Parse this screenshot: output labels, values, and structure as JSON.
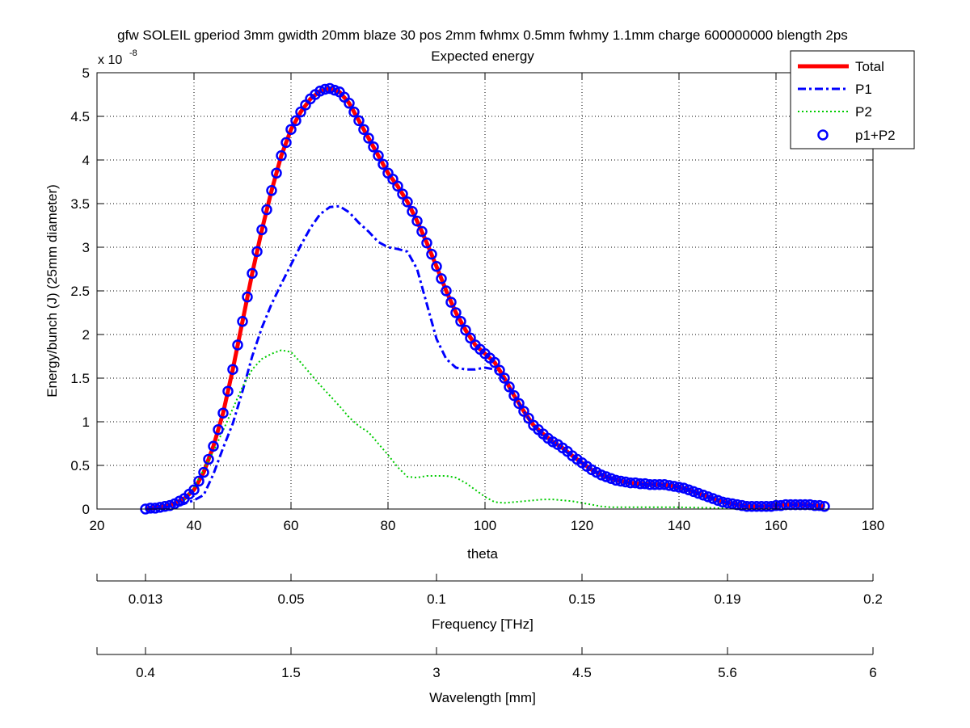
{
  "chart_data": {
    "type": "line",
    "title": "gfw SOLEIL gperiod 3mm gwidth 20mm blaze 30 pos 2mm fwhmx 0.5mm fwhmy 1.1mm charge 600000000 blength 2ps",
    "subtitle": "Expected energy",
    "xlabel": "theta",
    "ylabel": "Energy/bunch (J) (25mm diameter)",
    "y_exponent_label": "x 10",
    "y_exponent": "-8",
    "xlim": [
      20,
      180
    ],
    "ylim": [
      0,
      5
    ],
    "xticks": [
      20,
      40,
      60,
      80,
      100,
      120,
      140,
      160,
      180
    ],
    "yticks": [
      0,
      0.5,
      1,
      1.5,
      2,
      2.5,
      3,
      3.5,
      4,
      4.5,
      5
    ],
    "ytick_labels": [
      "0",
      "0.5",
      "1",
      "1.5",
      "2",
      "2.5",
      "3",
      "3.5",
      "4",
      "4.5",
      "5"
    ],
    "grid": true,
    "legend_position": "top-right",
    "colors": {
      "total": "#ff0000",
      "p1": "#0000ff",
      "p2": "#00cc00",
      "markers": "#0000ff"
    },
    "series": [
      {
        "name": "Total",
        "style": "solid-thick",
        "x": [
          30,
          35,
          38,
          40,
          42,
          44,
          46,
          48,
          50,
          52,
          54,
          56,
          58,
          60,
          62,
          64,
          66,
          68,
          70,
          72,
          74,
          76,
          78,
          80,
          82,
          84,
          86,
          88,
          90,
          92,
          94,
          96,
          98,
          100,
          102,
          104,
          106,
          108,
          110,
          112,
          114,
          116,
          118,
          120,
          122,
          124,
          126,
          128,
          130,
          132,
          134,
          136,
          138,
          140,
          142,
          144,
          146,
          148,
          150,
          152,
          154,
          156,
          158,
          160,
          162,
          164,
          166,
          168,
          170
        ],
        "values": [
          0,
          0.04,
          0.12,
          0.22,
          0.42,
          0.72,
          1.1,
          1.6,
          2.15,
          2.7,
          3.2,
          3.65,
          4.05,
          4.35,
          4.55,
          4.7,
          4.79,
          4.82,
          4.78,
          4.65,
          4.45,
          4.25,
          4.05,
          3.85,
          3.7,
          3.52,
          3.3,
          3.05,
          2.78,
          2.5,
          2.25,
          2.05,
          1.88,
          1.78,
          1.68,
          1.5,
          1.3,
          1.12,
          0.96,
          0.86,
          0.77,
          0.7,
          0.61,
          0.53,
          0.45,
          0.39,
          0.35,
          0.32,
          0.3,
          0.29,
          0.28,
          0.28,
          0.27,
          0.25,
          0.22,
          0.18,
          0.14,
          0.1,
          0.07,
          0.05,
          0.03,
          0.03,
          0.03,
          0.04,
          0.05,
          0.05,
          0.05,
          0.04,
          0.03
        ]
      },
      {
        "name": "P1",
        "style": "dash-dot",
        "x": [
          30,
          34,
          38,
          40,
          42,
          44,
          46,
          48,
          50,
          52,
          54,
          56,
          58,
          60,
          62,
          64,
          66,
          68,
          70,
          72,
          74,
          76,
          78,
          80,
          82,
          84,
          86,
          88,
          90,
          92,
          94,
          96,
          98,
          100,
          102,
          104,
          106,
          108,
          110,
          112,
          114,
          116,
          118,
          120,
          122,
          124,
          126,
          128,
          130,
          132,
          134,
          136,
          138,
          140,
          142,
          144,
          146,
          148,
          150,
          152,
          154,
          156,
          158,
          160,
          162,
          164,
          166,
          168,
          170
        ],
        "values": [
          0,
          0.02,
          0.06,
          0.1,
          0.16,
          0.4,
          0.7,
          0.98,
          1.35,
          1.75,
          2.08,
          2.35,
          2.58,
          2.8,
          3.02,
          3.22,
          3.38,
          3.46,
          3.47,
          3.4,
          3.28,
          3.18,
          3.06,
          3.0,
          2.98,
          2.95,
          2.75,
          2.35,
          1.95,
          1.72,
          1.62,
          1.6,
          1.6,
          1.62,
          1.6,
          1.48,
          1.3,
          1.12,
          0.95,
          0.83,
          0.75,
          0.68,
          0.61,
          0.53,
          0.45,
          0.39,
          0.35,
          0.32,
          0.3,
          0.29,
          0.28,
          0.28,
          0.27,
          0.25,
          0.22,
          0.18,
          0.14,
          0.1,
          0.07,
          0.05,
          0.03,
          0.03,
          0.03,
          0.04,
          0.05,
          0.05,
          0.05,
          0.04,
          0.03
        ]
      },
      {
        "name": "P2",
        "style": "dotted",
        "x": [
          38,
          40,
          42,
          44,
          46,
          48,
          50,
          52,
          54,
          56,
          58,
          60,
          62,
          64,
          66,
          68,
          70,
          72,
          74,
          76,
          78,
          80,
          82,
          84,
          86,
          88,
          90,
          92,
          94,
          96,
          98,
          100,
          102,
          104,
          106,
          108,
          110,
          112,
          114,
          116,
          118,
          120,
          122,
          124,
          126,
          130,
          140,
          150,
          152
        ],
        "values": [
          0.1,
          0.25,
          0.45,
          0.66,
          0.9,
          1.15,
          1.4,
          1.6,
          1.72,
          1.78,
          1.82,
          1.8,
          1.68,
          1.55,
          1.42,
          1.3,
          1.18,
          1.05,
          0.95,
          0.88,
          0.75,
          0.62,
          0.48,
          0.37,
          0.36,
          0.38,
          0.38,
          0.38,
          0.36,
          0.3,
          0.22,
          0.14,
          0.08,
          0.07,
          0.08,
          0.09,
          0.1,
          0.11,
          0.11,
          0.1,
          0.09,
          0.07,
          0.05,
          0.03,
          0.02,
          0.02,
          0.02,
          0.01,
          0
        ]
      },
      {
        "name": "p1+P2",
        "style": "circle-markers",
        "x": [
          30,
          31,
          32,
          33,
          34,
          35,
          36,
          37,
          38,
          39,
          40,
          41,
          42,
          43,
          44,
          45,
          46,
          47,
          48,
          49,
          50,
          51,
          52,
          53,
          54,
          55,
          56,
          57,
          58,
          59,
          60,
          61,
          62,
          63,
          64,
          65,
          66,
          67,
          68,
          69,
          70,
          71,
          72,
          73,
          74,
          75,
          76,
          77,
          78,
          79,
          80,
          81,
          82,
          83,
          84,
          85,
          86,
          87,
          88,
          89,
          90,
          91,
          92,
          93,
          94,
          95,
          96,
          97,
          98,
          99,
          100,
          101,
          102,
          103,
          104,
          105,
          106,
          107,
          108,
          109,
          110,
          111,
          112,
          113,
          114,
          115,
          116,
          117,
          118,
          119,
          120,
          121,
          122,
          123,
          124,
          125,
          126,
          127,
          128,
          129,
          130,
          131,
          132,
          133,
          134,
          135,
          136,
          137,
          138,
          139,
          140,
          141,
          142,
          143,
          144,
          145,
          146,
          147,
          148,
          149,
          150,
          151,
          152,
          153,
          154,
          155,
          156,
          157,
          158,
          159,
          160,
          161,
          162,
          163,
          164,
          165,
          166,
          167,
          168,
          169,
          170
        ],
        "values": [
          0,
          0.01,
          0.01,
          0.02,
          0.03,
          0.04,
          0.06,
          0.09,
          0.12,
          0.17,
          0.22,
          0.32,
          0.42,
          0.57,
          0.72,
          0.91,
          1.1,
          1.35,
          1.6,
          1.88,
          2.15,
          2.43,
          2.7,
          2.95,
          3.2,
          3.43,
          3.65,
          3.85,
          4.05,
          4.2,
          4.35,
          4.45,
          4.55,
          4.63,
          4.7,
          4.75,
          4.79,
          4.81,
          4.82,
          4.8,
          4.78,
          4.72,
          4.65,
          4.55,
          4.45,
          4.35,
          4.25,
          4.15,
          4.05,
          3.95,
          3.85,
          3.78,
          3.7,
          3.61,
          3.52,
          3.41,
          3.3,
          3.18,
          3.05,
          2.92,
          2.78,
          2.64,
          2.5,
          2.37,
          2.25,
          2.15,
          2.05,
          1.96,
          1.88,
          1.83,
          1.78,
          1.73,
          1.68,
          1.59,
          1.5,
          1.4,
          1.3,
          1.21,
          1.12,
          1.04,
          0.96,
          0.91,
          0.86,
          0.81,
          0.77,
          0.74,
          0.7,
          0.66,
          0.61,
          0.57,
          0.53,
          0.49,
          0.45,
          0.42,
          0.39,
          0.37,
          0.35,
          0.33,
          0.32,
          0.31,
          0.3,
          0.3,
          0.29,
          0.29,
          0.28,
          0.28,
          0.28,
          0.28,
          0.27,
          0.26,
          0.25,
          0.24,
          0.22,
          0.2,
          0.18,
          0.16,
          0.14,
          0.12,
          0.1,
          0.08,
          0.07,
          0.06,
          0.05,
          0.04,
          0.03,
          0.03,
          0.03,
          0.03,
          0.03,
          0.03,
          0.04,
          0.04,
          0.05,
          0.05,
          0.05,
          0.05,
          0.05,
          0.05,
          0.04,
          0.04,
          0.03
        ]
      }
    ],
    "secondary_axes": [
      {
        "label": "Frequency [THz]",
        "tick_labels": [
          "0.013",
          "0.05",
          "0.1",
          "0.15",
          "0.19",
          "0.2"
        ],
        "tick_theta": [
          30,
          60,
          90,
          120,
          150,
          180
        ],
        "end_theta": [
          20,
          180
        ]
      },
      {
        "label": "Wavelength [mm]",
        "tick_labels": [
          "0.4",
          "1.5",
          "3",
          "4.5",
          "5.6",
          "6"
        ],
        "tick_theta": [
          30,
          60,
          90,
          120,
          150,
          180
        ],
        "end_theta": [
          20,
          180
        ]
      }
    ]
  }
}
